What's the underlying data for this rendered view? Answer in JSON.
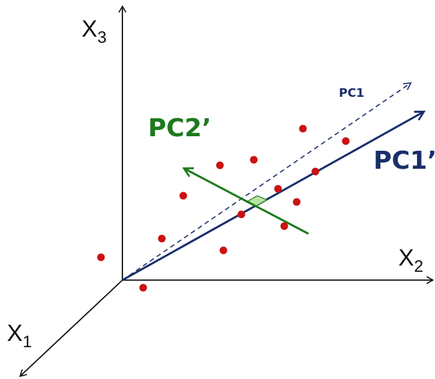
{
  "axes": {
    "x1": {
      "main": "X",
      "sub": "1"
    },
    "x2": {
      "main": "X",
      "sub": "2"
    },
    "x3": {
      "main": "X",
      "sub": "3"
    }
  },
  "labels": {
    "pc1": "PC1",
    "pc1_prime": "PC1’",
    "pc2_prime": "PC2’"
  },
  "colors": {
    "axis": "#111111",
    "pc1": "#1a2e6b",
    "pc2": "#1d7a1d",
    "points": "#cc1111",
    "right_angle_fill": "#b8e3a0"
  },
  "point_count": 15
}
